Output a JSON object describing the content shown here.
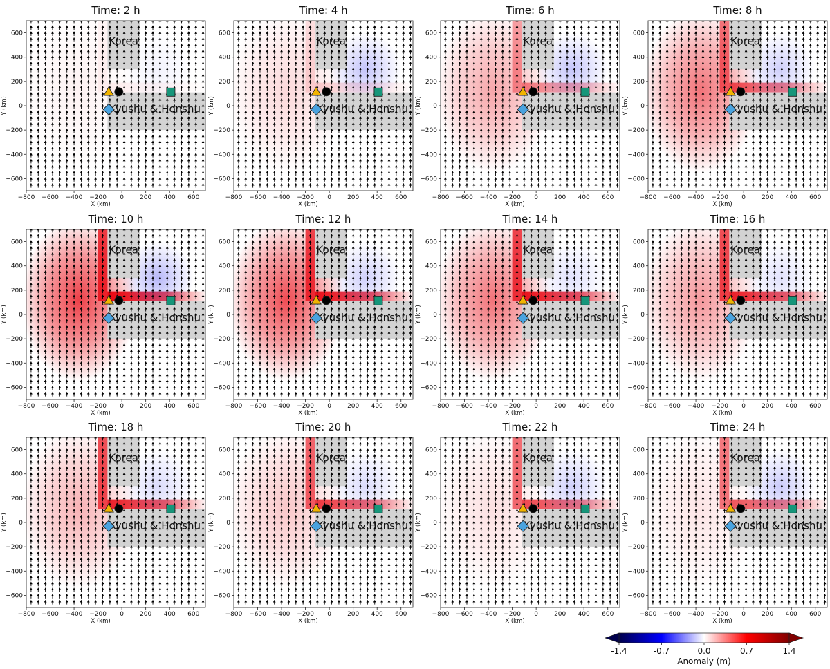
{
  "chart_data": {
    "type": "heatmap",
    "panel_titles": [
      "Time: 2 h",
      "Time: 4 h",
      "Time: 6 h",
      "Time: 8 h",
      "Time: 10 h",
      "Time: 12 h",
      "Time: 14 h",
      "Time: 16 h",
      "Time: 18 h",
      "Time: 20 h",
      "Time: 22 h",
      "Time: 24 h"
    ],
    "time_hours": [
      2,
      4,
      6,
      8,
      10,
      12,
      14,
      16,
      18,
      20,
      22,
      24
    ],
    "xlabel": "X (km)",
    "ylabel": "Y (km)",
    "xlim": [
      -800,
      700
    ],
    "ylim": [
      -700,
      700
    ],
    "x_ticks": [
      -800,
      -600,
      -400,
      -200,
      0,
      200,
      400,
      600
    ],
    "y_ticks": [
      -600,
      -400,
      -200,
      0,
      200,
      400,
      600
    ],
    "x_tick_labels": [
      "−800",
      "−600",
      "−400",
      "−200",
      "0",
      "200",
      "400",
      "600"
    ],
    "y_tick_labels": [
      "−600",
      "−400",
      "−200",
      "0",
      "200",
      "400",
      "600"
    ],
    "land_regions": [
      {
        "name": "Korea",
        "x_range": [
          -120,
          150
        ],
        "y_range": [
          300,
          700
        ]
      },
      {
        "name": "Kyushu & Honshu",
        "x_range": [
          -120,
          700
        ],
        "y_range": [
          -200,
          110
        ]
      }
    ],
    "markers": [
      {
        "shape": "triangle",
        "color": "#f2b400",
        "x": -110,
        "y": 115
      },
      {
        "shape": "circle",
        "color": "#000000",
        "x": -25,
        "y": 115
      },
      {
        "shape": "square",
        "color": "#16967a",
        "x": 410,
        "y": 112
      },
      {
        "shape": "diamond",
        "color": "#4aa3df",
        "x": -110,
        "y": -30
      }
    ],
    "wind_vectors": {
      "direction": "northward",
      "x_spacing": 60,
      "y_spacing": 50
    },
    "colorbar": {
      "label": "Anomaly (m)",
      "range": [
        -1.4,
        1.4
      ],
      "ticks": [
        -1.4,
        -0.7,
        0.0,
        0.7,
        1.4
      ],
      "tick_labels": [
        "-1.4",
        "-0.7",
        "0.0",
        "0.7",
        "1.4"
      ],
      "colormap": "seismic",
      "extend": "both"
    },
    "colors": {
      "land": "#d3d3d3",
      "positive": "#e8000b",
      "negative": "#0000ff",
      "arrow": "#000000"
    },
    "anomaly_features": [
      {
        "panel": 1,
        "positive": {
          "west_spread": 0.05,
          "coast_band": 0.05
        },
        "negative_peak": 0.05
      },
      {
        "panel": 2,
        "positive": {
          "west_spread": 0.15,
          "coast_band": 0.15
        },
        "negative_peak": 0.25
      },
      {
        "panel": 3,
        "positive": {
          "west_spread": 0.35,
          "coast_band": 0.45
        },
        "negative_peak": 0.25
      },
      {
        "panel": 4,
        "positive": {
          "west_spread": 0.55,
          "coast_band": 0.65
        },
        "negative_peak": 0.2
      },
      {
        "panel": 5,
        "positive": {
          "west_spread": 0.75,
          "coast_band": 0.95
        },
        "negative_peak": 0.3
      },
      {
        "panel": 6,
        "positive": {
          "west_spread": 0.7,
          "coast_band": 0.9
        },
        "negative_peak": 0.2
      },
      {
        "panel": 7,
        "positive": {
          "west_spread": 0.55,
          "coast_band": 0.9
        },
        "negative_peak": 0.12
      },
      {
        "panel": 8,
        "positive": {
          "west_spread": 0.4,
          "coast_band": 0.85
        },
        "negative_peak": 0.12
      },
      {
        "panel": 9,
        "positive": {
          "west_spread": 0.3,
          "coast_band": 0.85
        },
        "negative_peak": 0.15
      },
      {
        "panel": 10,
        "positive": {
          "west_spread": 0.22,
          "coast_band": 0.75
        },
        "negative_peak": 0.15
      },
      {
        "panel": 11,
        "positive": {
          "west_spread": 0.12,
          "coast_band": 0.7
        },
        "negative_peak": 0.2
      },
      {
        "panel": 12,
        "positive": {
          "west_spread": 0.1,
          "coast_band": 0.65
        },
        "negative_peak": 0.22
      }
    ]
  }
}
